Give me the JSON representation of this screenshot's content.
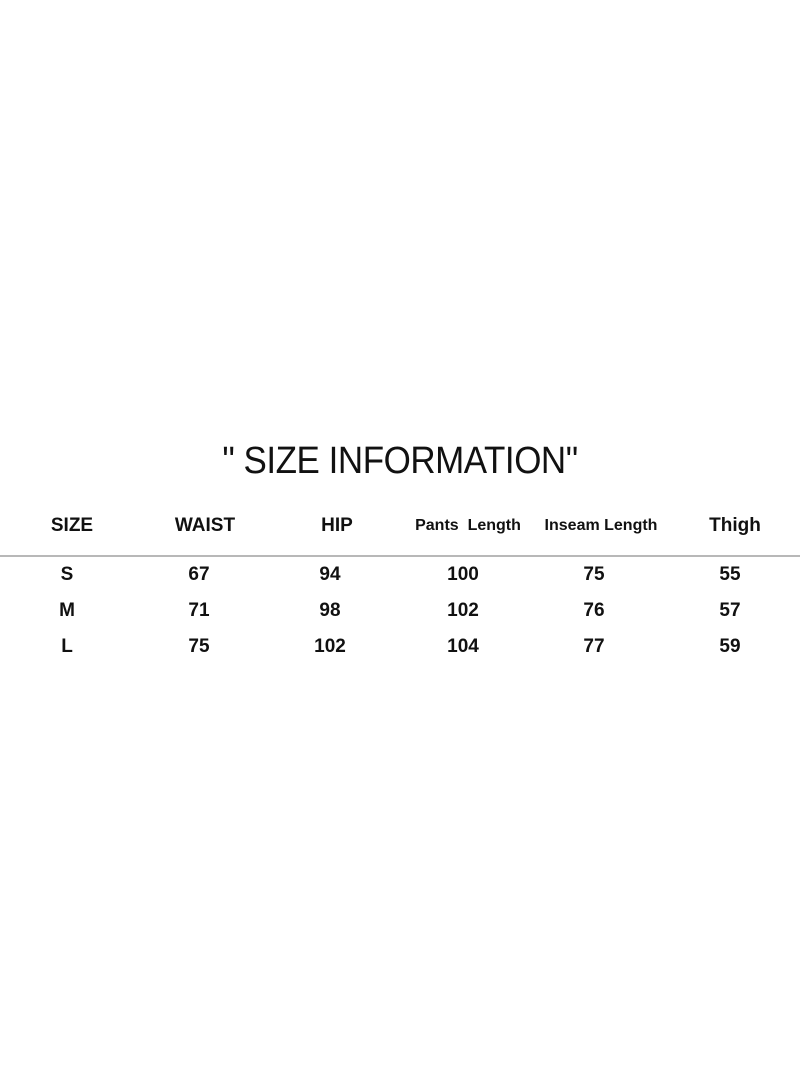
{
  "title": "\" SIZE INFORMATION\"",
  "table": {
    "headers": [
      "SIZE",
      "WAIST",
      "HIP",
      "Pants  Length",
      "Inseam Length",
      "Thigh"
    ],
    "rows": [
      [
        "S",
        "67",
        "94",
        "100",
        "75",
        "55"
      ],
      [
        "M",
        "71",
        "98",
        "102",
        "76",
        "57"
      ],
      [
        "L",
        "75",
        "102",
        "104",
        "77",
        "59"
      ]
    ]
  }
}
